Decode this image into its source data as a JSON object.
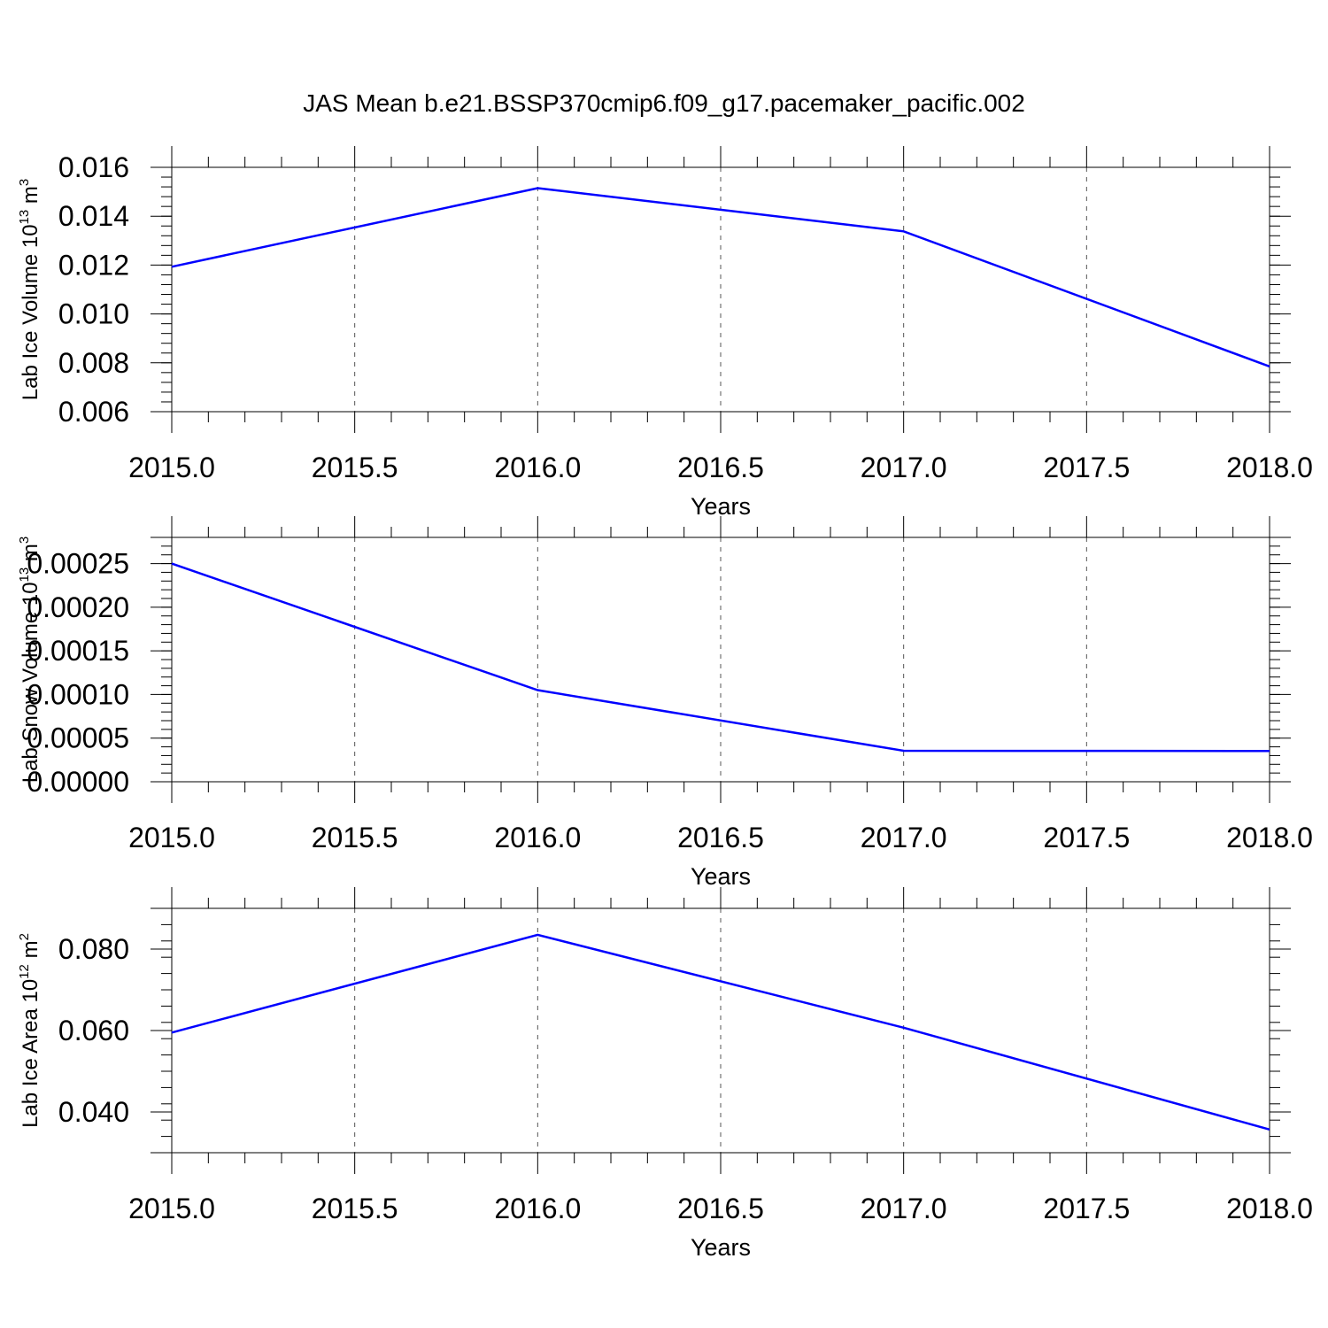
{
  "title": "JAS Mean b.e21.BSSP370cmip6.f09_g17.pacemaker_pacific.002",
  "chart_data": [
    {
      "type": "line",
      "xlabel": "Years",
      "ylabel": {
        "text": "Lab Ice Volume 10",
        "exp": "13",
        "unit": " m",
        "unit_exp": "3"
      },
      "xlim": [
        2015.0,
        2018.0
      ],
      "ylim": [
        0.006,
        0.016
      ],
      "xticks": [
        "2015.0",
        "2015.5",
        "2016.0",
        "2016.5",
        "2017.0",
        "2017.5",
        "2018.0"
      ],
      "yticks": [
        "0.006",
        "0.008",
        "0.010",
        "0.012",
        "0.014",
        "0.016"
      ],
      "x": [
        2015.0,
        2016.0,
        2017.0,
        2018.0
      ],
      "y": [
        0.01193,
        0.01515,
        0.01338,
        0.00785
      ],
      "color": "#0000ff",
      "grid": "dashed vertical at major x ticks"
    },
    {
      "type": "line",
      "xlabel": "Years",
      "ylabel": {
        "text": "Lab Snow Volume 10",
        "exp": "13",
        "unit": " m",
        "unit_exp": "3"
      },
      "xlim": [
        2015.0,
        2018.0
      ],
      "ylim": [
        0.0,
        0.00028
      ],
      "xticks": [
        "2015.0",
        "2015.5",
        "2016.0",
        "2016.5",
        "2017.0",
        "2017.5",
        "2018.0"
      ],
      "yticks": [
        "0.00000",
        "0.00005",
        "0.00010",
        "0.00015",
        "0.00020",
        "0.00025"
      ],
      "x": [
        2015.0,
        2016.0,
        2017.0,
        2018.0
      ],
      "y": [
        0.00025,
        0.000105,
        3.55e-05,
        3.52e-05
      ],
      "color": "#0000ff",
      "grid": "dashed vertical at major x ticks"
    },
    {
      "type": "line",
      "xlabel": "Years",
      "ylabel": {
        "text": "Lab Ice Area 10",
        "exp": "12",
        "unit": " m",
        "unit_exp": "2"
      },
      "xlim": [
        2015.0,
        2018.0
      ],
      "ylim": [
        0.03,
        0.09
      ],
      "xticks": [
        "2015.0",
        "2015.5",
        "2016.0",
        "2016.5",
        "2017.0",
        "2017.5",
        "2018.0"
      ],
      "yticks": [
        "0.040",
        "0.060",
        "0.080"
      ],
      "x": [
        2015.0,
        2016.0,
        2017.0,
        2018.0
      ],
      "y": [
        0.0595,
        0.0835,
        0.0607,
        0.0357
      ],
      "color": "#0000ff",
      "grid": "dashed vertical at major x ticks"
    }
  ]
}
